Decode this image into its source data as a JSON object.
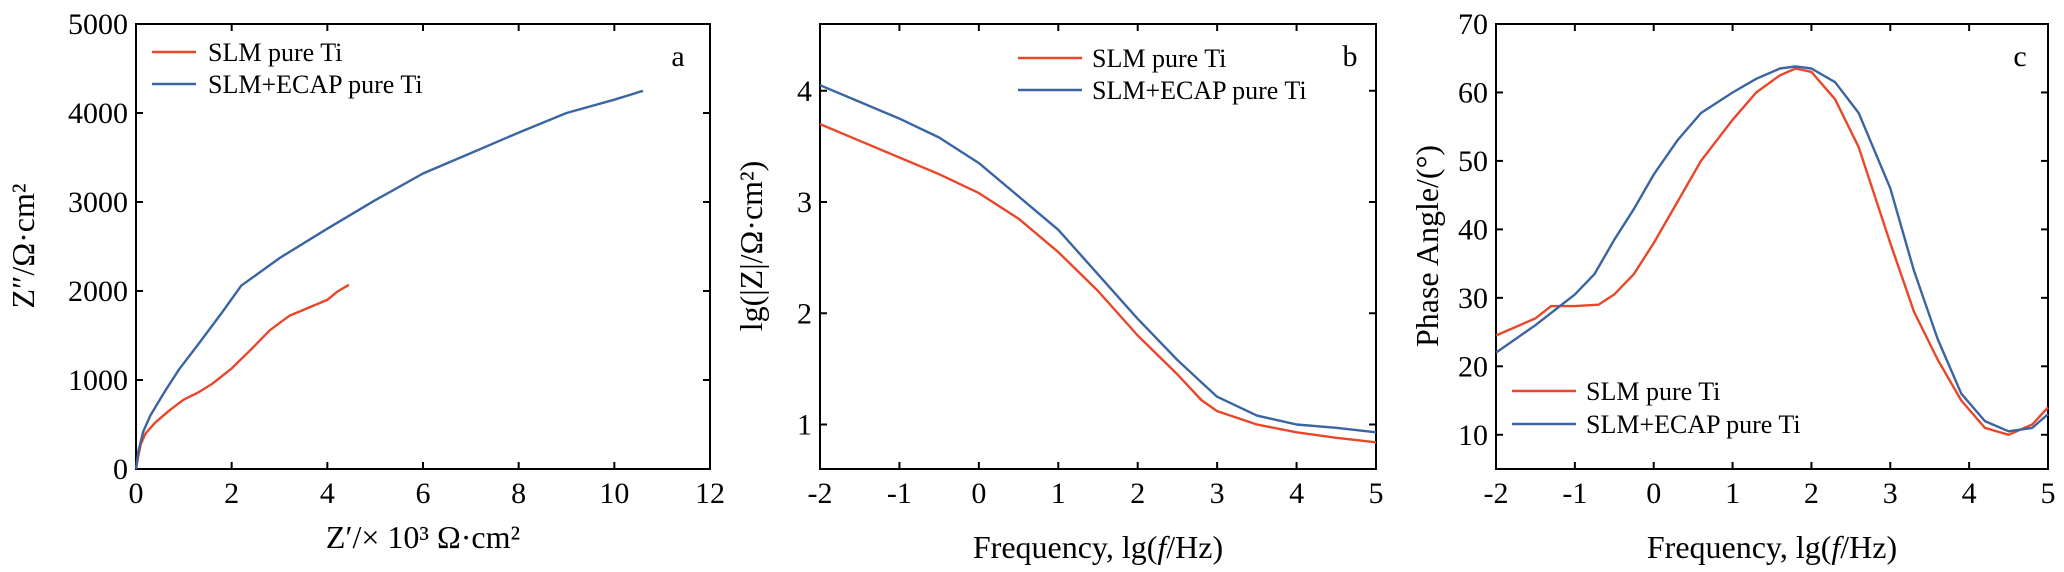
{
  "figure": {
    "title": ""
  },
  "colors": {
    "slm": "#e8472a",
    "ecap": "#3a65a2"
  },
  "chart_data": [
    {
      "id": "a",
      "type": "line",
      "panel_label": "a",
      "xlabel": "Z′/× 10³ Ω·cm²",
      "ylabel": "Z″/Ω·cm²",
      "xlim": [
        0,
        12
      ],
      "ylim": [
        0,
        5000
      ],
      "xticks": [
        0,
        2,
        4,
        6,
        8,
        10,
        12
      ],
      "yticks": [
        0,
        1000,
        2000,
        3000,
        4000,
        5000
      ],
      "legend_position": "top-left",
      "series": [
        {
          "name": "SLM pure Ti",
          "color": "#e8472a",
          "x": [
            0,
            0.05,
            0.1,
            0.2,
            0.4,
            0.7,
            1.0,
            1.3,
            1.6,
            2.0,
            2.4,
            2.8,
            3.2,
            3.6,
            4.0,
            4.2,
            4.45
          ],
          "y": [
            0,
            150,
            280,
            400,
            520,
            660,
            780,
            860,
            960,
            1130,
            1340,
            1560,
            1720,
            1810,
            1900,
            1990,
            2070
          ]
        },
        {
          "name": "SLM+ECAP pure Ti",
          "color": "#3a65a2",
          "x": [
            0,
            0.05,
            0.15,
            0.3,
            0.6,
            0.9,
            1.3,
            1.8,
            2.2,
            3.0,
            4.0,
            5.0,
            6.0,
            7.0,
            8.0,
            9.0,
            10.0,
            10.6
          ],
          "y": [
            0,
            200,
            420,
            600,
            870,
            1120,
            1400,
            1760,
            2060,
            2370,
            2700,
            3020,
            3320,
            3550,
            3780,
            4000,
            4150,
            4250
          ]
        }
      ]
    },
    {
      "id": "b",
      "type": "line",
      "panel_label": "b",
      "xlabel": "Frequency, lg(f/Hz)",
      "ylabel": "lg(|Z|/Ω·cm²)",
      "xlim": [
        -2,
        5
      ],
      "ylim": [
        0.6,
        4.6
      ],
      "xticks": [
        -2,
        -1,
        0,
        1,
        2,
        3,
        4,
        5
      ],
      "yticks": [
        1,
        2,
        3,
        4
      ],
      "legend_position": "top-right",
      "series": [
        {
          "name": "SLM pure Ti",
          "color": "#e8472a",
          "x": [
            -2,
            -1.5,
            -1,
            -0.5,
            0,
            0.5,
            1,
            1.5,
            2,
            2.5,
            2.8,
            3,
            3.5,
            4,
            4.5,
            5
          ],
          "y": [
            3.7,
            3.55,
            3.4,
            3.25,
            3.08,
            2.85,
            2.55,
            2.2,
            1.8,
            1.45,
            1.22,
            1.12,
            1.0,
            0.93,
            0.88,
            0.84
          ]
        },
        {
          "name": "SLM+ECAP pure Ti",
          "color": "#3a65a2",
          "x": [
            -2,
            -1.5,
            -1,
            -0.5,
            0,
            0.5,
            1,
            1.5,
            2,
            2.5,
            2.8,
            3,
            3.5,
            4,
            4.5,
            5
          ],
          "y": [
            4.05,
            3.9,
            3.75,
            3.58,
            3.35,
            3.05,
            2.75,
            2.35,
            1.95,
            1.58,
            1.38,
            1.25,
            1.08,
            1.0,
            0.97,
            0.93
          ]
        }
      ]
    },
    {
      "id": "c",
      "type": "line",
      "panel_label": "c",
      "xlabel": "Frequency, lg(f/Hz)",
      "ylabel": "Phase Angle/(°)",
      "xlim": [
        -2,
        5
      ],
      "ylim": [
        5,
        70
      ],
      "xticks": [
        -2,
        -1,
        0,
        1,
        2,
        3,
        4,
        5
      ],
      "yticks": [
        10,
        20,
        30,
        40,
        50,
        60,
        70
      ],
      "legend_position": "bottom-left",
      "series": [
        {
          "name": "SLM pure Ti",
          "color": "#e8472a",
          "x": [
            -2,
            -1.5,
            -1.3,
            -1,
            -0.7,
            -0.5,
            -0.25,
            0,
            0.3,
            0.6,
            1,
            1.3,
            1.6,
            1.8,
            2,
            2.3,
            2.6,
            3,
            3.3,
            3.6,
            3.9,
            4.2,
            4.5,
            4.8,
            5
          ],
          "y": [
            24.5,
            27,
            28.8,
            28.8,
            29,
            30.5,
            33.5,
            38,
            44,
            50,
            56,
            60,
            62.5,
            63.5,
            63,
            59,
            52,
            38,
            28,
            21,
            15,
            11,
            10,
            11.5,
            14
          ]
        },
        {
          "name": "SLM+ECAP pure Ti",
          "color": "#3a65a2",
          "x": [
            -2,
            -1.5,
            -1,
            -0.75,
            -0.5,
            -0.25,
            0,
            0.3,
            0.6,
            1,
            1.3,
            1.6,
            1.8,
            2,
            2.3,
            2.6,
            3,
            3.3,
            3.6,
            3.9,
            4.2,
            4.5,
            4.8,
            5
          ],
          "y": [
            22,
            26,
            30.5,
            33.5,
            38.5,
            43,
            48,
            53,
            57,
            60,
            62,
            63.5,
            63.8,
            63.5,
            61.5,
            57,
            46,
            34,
            24,
            16,
            12,
            10.5,
            11,
            13
          ]
        }
      ]
    }
  ]
}
